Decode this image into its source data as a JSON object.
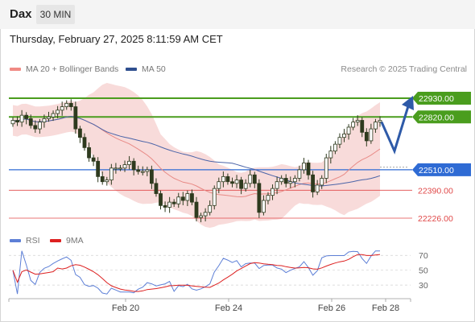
{
  "header": {
    "symbol": "Dax",
    "timeframe": "30 MIN"
  },
  "datetime": "Thursday, February 27, 2025 8:11:59 AM CET",
  "legend": {
    "ma20_label": "MA 20 + Bollinger Bands",
    "ma50_label": "MA 50",
    "research": "Research © 2025 Trading Central"
  },
  "rsi_legend": {
    "rsi_label": "RSI",
    "ma_label": "9MA"
  },
  "colors": {
    "bollinger": "#f7d5d3",
    "ma20": "#e88a86",
    "ma50": "#4b64a8",
    "resistance": "#4a9d1e",
    "pivot": "#2f6bd4",
    "support": "#e04848",
    "candle": "#2e3a1e",
    "arrow": "#2e5aa8",
    "rsi": "#5d7fd6",
    "rsi_ma": "#dd2020"
  },
  "chart_data": {
    "type": "candlestick",
    "symbol": "Dax",
    "timeframe": "30 MIN",
    "x_ticks": [
      "Feb 20",
      "Feb 24",
      "Feb 26",
      "Feb 28"
    ],
    "levels": [
      {
        "value": 22930.0,
        "label": "22930.00",
        "kind": "resistance"
      },
      {
        "value": 22820.0,
        "label": "22820.00",
        "kind": "resistance"
      },
      {
        "value": 22510.0,
        "label": "22510.00",
        "kind": "pivot"
      },
      {
        "value": 22390.0,
        "label": "22390.00",
        "kind": "support"
      },
      {
        "value": 22226.0,
        "label": "22226.00",
        "kind": "support"
      }
    ],
    "ylim": [
      22130,
      22960
    ],
    "close_approx": [
      22800,
      22790,
      22830,
      22810,
      22770,
      22750,
      22790,
      22810,
      22820,
      22840,
      22860,
      22880,
      22900,
      22880,
      22750,
      22700,
      22640,
      22580,
      22560,
      22470,
      22440,
      22450,
      22520,
      22520,
      22520,
      22540,
      22560,
      22510,
      22500,
      22500,
      22510,
      22430,
      22370,
      22300,
      22290,
      22320,
      22310,
      22350,
      22330,
      22370,
      22320,
      22230,
      22240,
      22260,
      22300,
      22400,
      22440,
      22470,
      22440,
      22430,
      22450,
      22400,
      22430,
      22480,
      22430,
      22260,
      22330,
      22360,
      22400,
      22440,
      22460,
      22430,
      22440,
      22460,
      22510,
      22550,
      22480,
      22380,
      22420,
      22460,
      22580,
      22620,
      22660,
      22700,
      22720,
      22760,
      22790,
      22800,
      22730,
      22680,
      22750,
      22790,
      22800
    ],
    "forecast_path": [
      22790,
      22620,
      22930
    ],
    "rsi_ticks": [
      70,
      50,
      30
    ],
    "rsi_ylim": [
      15,
      80
    ]
  }
}
